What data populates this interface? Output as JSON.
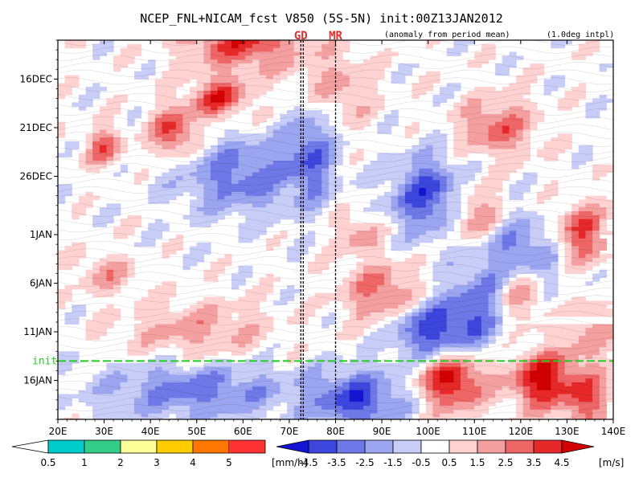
{
  "chart_data": {
    "type": "heatmap",
    "title": "NCEP_FNL+NICAM_fcst V850 (5S-5N) init:00Z13JAN2012",
    "subtitle_left": "(anomaly from period mean)",
    "subtitle_right": "(1.0deg intpl)",
    "x_ticks": [
      "20E",
      "30E",
      "40E",
      "50E",
      "60E",
      "70E",
      "80E",
      "90E",
      "100E",
      "110E",
      "120E",
      "130E",
      "140E"
    ],
    "x_values": [
      20,
      30,
      40,
      50,
      60,
      70,
      80,
      90,
      100,
      110,
      120,
      130,
      140
    ],
    "xlim": [
      20,
      140
    ],
    "y_ticks": [
      "16DEC",
      "21DEC",
      "26DEC",
      "1JAN",
      "6JAN",
      "11JAN",
      "16JAN"
    ],
    "y_values": [
      4,
      9,
      14,
      20,
      25,
      30,
      35
    ],
    "ylim": [
      0,
      39
    ],
    "init_label": "init",
    "init_y": 33,
    "markers": [
      {
        "label": "GD",
        "lon": 72.5
      },
      {
        "label": "MR",
        "lon": 80
      }
    ],
    "precip_colorbar": {
      "labels": [
        "0.5",
        "1",
        "2",
        "3",
        "4",
        "5"
      ],
      "unit": "[mm/h]",
      "colors": [
        "#00cccc",
        "#33cc88",
        "#ffff99",
        "#ffcc00",
        "#ff7700",
        "#ff3333"
      ]
    },
    "wind_colorbar": {
      "labels": [
        "-4.5",
        "-3.5",
        "-2.5",
        "-1.5",
        "-0.5",
        "0.5",
        "1.5",
        "2.5",
        "3.5",
        "4.5"
      ],
      "unit": "[m/s]",
      "colors": [
        "#1414d2",
        "#3c46dc",
        "#6e78e6",
        "#9ba5f0",
        "#c8cdf8",
        "#ffffff",
        "#ffd2d2",
        "#f5a0a0",
        "#ee6666",
        "#e62828",
        "#d20000"
      ]
    }
  }
}
